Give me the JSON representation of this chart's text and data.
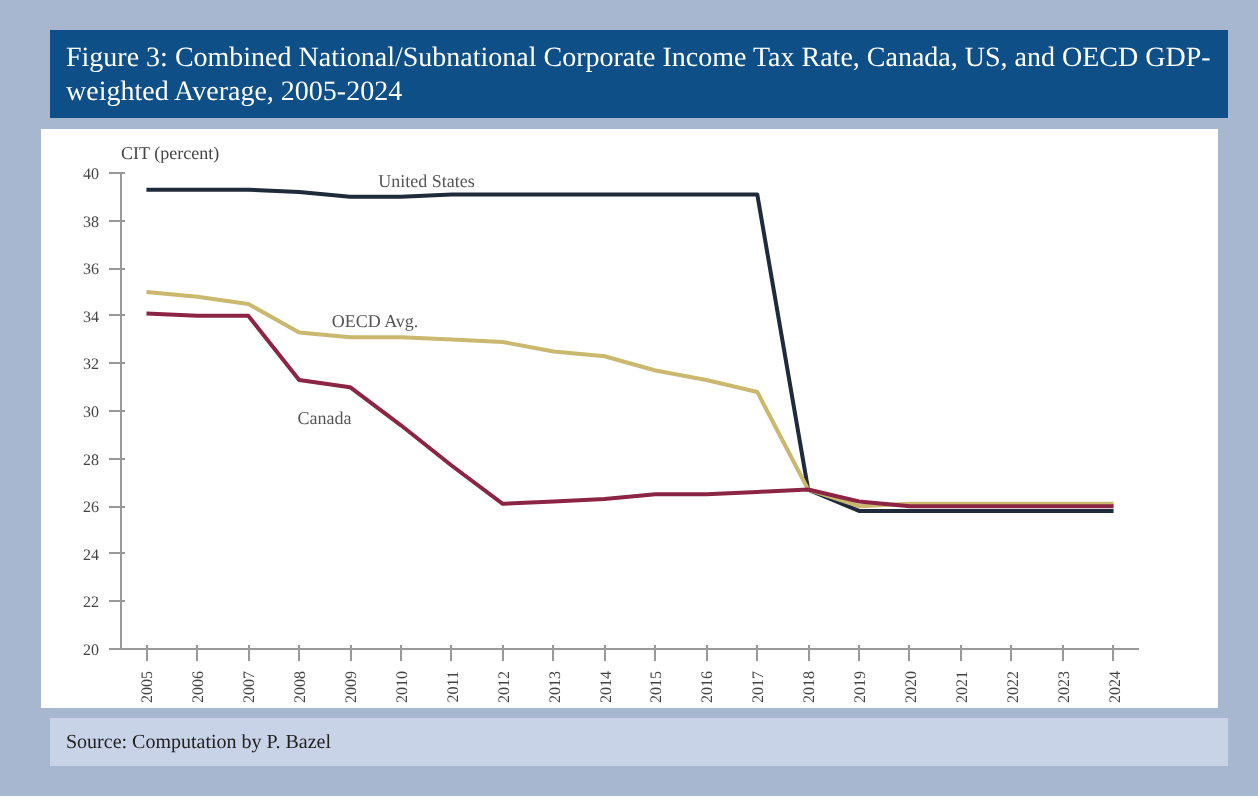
{
  "chart_data": {
    "type": "line",
    "title": "Figure 3: Combined National/Subnational Corporate Income Tax Rate, Canada, US, and OECD GDP-weighted Average, 2005-2024",
    "ylabel": "CIT (percent)",
    "categories": [
      "2005",
      "2006",
      "2007",
      "2008",
      "2009",
      "2010",
      "2011",
      "2012",
      "2013",
      "2014",
      "2015",
      "2016",
      "2017",
      "2018",
      "2019",
      "2020",
      "2021",
      "2022",
      "2023",
      "2024"
    ],
    "ylim": [
      20,
      40
    ],
    "yticks": [
      20,
      22,
      24,
      26,
      28,
      30,
      32,
      34,
      36,
      38,
      40
    ],
    "grid": false,
    "legend": false,
    "line_style": "solid",
    "series": [
      {
        "name": "United States",
        "color": "#1f2a3a",
        "values": [
          39.3,
          39.3,
          39.3,
          39.2,
          39.0,
          39.0,
          39.1,
          39.1,
          39.1,
          39.1,
          39.1,
          39.1,
          39.1,
          26.7,
          25.8,
          25.8,
          25.8,
          25.8,
          25.8,
          25.8
        ]
      },
      {
        "name": "OECD Avg.",
        "color": "#c9b86e",
        "values": [
          35.0,
          34.8,
          34.5,
          33.3,
          33.1,
          33.1,
          33.0,
          32.9,
          32.5,
          32.3,
          31.7,
          31.3,
          30.8,
          26.7,
          26.0,
          26.1,
          26.1,
          26.1,
          26.1,
          26.1
        ]
      },
      {
        "name": "Canada",
        "color": "#8c2444",
        "values": [
          34.1,
          34.0,
          34.0,
          31.3,
          31.0,
          29.4,
          27.7,
          26.1,
          26.2,
          26.3,
          26.5,
          26.5,
          26.6,
          26.7,
          26.2,
          26.0,
          26.0,
          26.0,
          26.0,
          26.0
        ]
      }
    ],
    "annotations": [
      "Source: Computation by P. Bazel"
    ]
  }
}
